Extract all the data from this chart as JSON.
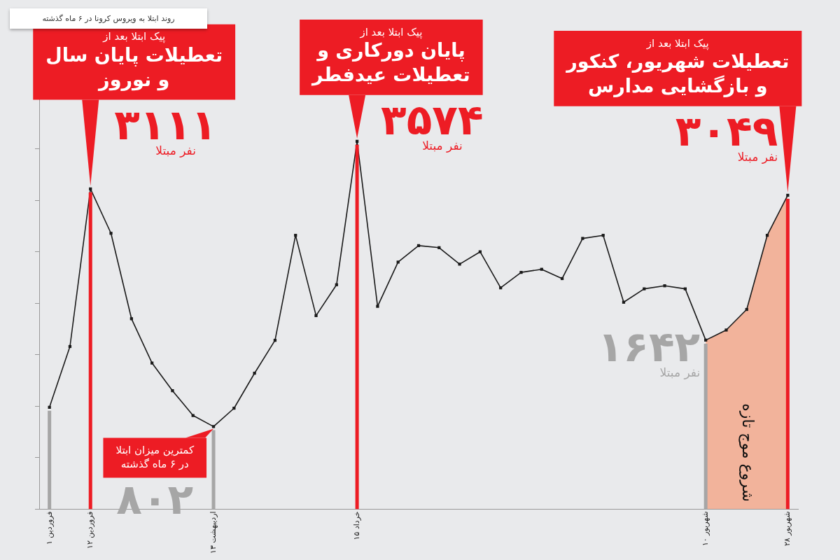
{
  "chart_data": {
    "type": "line",
    "title": "روند ابتلا به ویروس کرونا در ۶ ماه گذشته",
    "categories": [
      "۱ فروردین",
      null,
      "۱۲ فروردین",
      null,
      null,
      null,
      null,
      null,
      "۱۳ اردیبهشت",
      null,
      null,
      null,
      null,
      null,
      null,
      "۱۵ خرداد",
      null,
      null,
      null,
      null,
      null,
      null,
      null,
      null,
      null,
      null,
      null,
      null,
      null,
      null,
      null,
      null,
      "۱۰ شهریور",
      null,
      null,
      null,
      "۲۸ شهریور"
    ],
    "series": [
      {
        "color": "#1a1a1a",
        "values": [
          990,
          1580,
          3111,
          2680,
          1850,
          1420,
          1150,
          910,
          802,
          980,
          1320,
          1640,
          2660,
          1880,
          2180,
          3574,
          1970,
          2400,
          2560,
          2540,
          2380,
          2500,
          2150,
          2300,
          2330,
          2240,
          2630,
          2660,
          2010,
          2140,
          2170,
          2140,
          1642,
          1740,
          1940,
          2660,
          3049
        ],
        "value_labels": [
          null,
          null,
          "۳۱۱۱\nنفر مبتلا",
          null,
          null,
          null,
          null,
          null,
          "۸۰۲",
          null,
          null,
          null,
          null,
          null,
          null,
          "۳۵۷۴\nنفر مبتلا",
          null,
          null,
          null,
          null,
          null,
          null,
          null,
          null,
          null,
          null,
          null,
          null,
          null,
          null,
          null,
          null,
          "۱۶۴۲\nنفر مبتلا",
          null,
          null,
          null,
          "۳۰۴۹\nنفر مبتلا"
        ]
      },
      {
        "type": "area",
        "name": "شروع موج تازه",
        "color": "#f2b39b",
        "marker": "none",
        "values": [
          null,
          null,
          null,
          null,
          null,
          null,
          null,
          null,
          null,
          null,
          null,
          null,
          null,
          null,
          null,
          null,
          null,
          null,
          null,
          null,
          null,
          null,
          null,
          null,
          null,
          null,
          null,
          null,
          null,
          null,
          null,
          null,
          1642,
          1740,
          1940,
          2660,
          3049
        ]
      }
    ],
    "ylim": [
      0,
      4130
    ],
    "yticks": [
      {
        "value": 0,
        "label": null
      },
      {
        "value": 500,
        "label": null
      },
      {
        "value": 1000,
        "label": null
      },
      {
        "value": 1500,
        "label": null
      },
      {
        "value": 2000,
        "label": null
      },
      {
        "value": 2500,
        "label": null
      },
      {
        "value": 3000,
        "label": null
      },
      {
        "value": 3500,
        "label": null
      },
      {
        "value": 4000,
        "label": null
      }
    ],
    "tick_labels": "x",
    "grid": false,
    "legend": false,
    "marker": "square",
    "line_style": "solid",
    "ref_lines": [
      {
        "axis": "x",
        "value": "۱ فروردین",
        "color": "#a6a6a6"
      },
      {
        "axis": "x",
        "value": "۱۲ فروردین",
        "color": "#ed1c24"
      },
      {
        "axis": "x",
        "value": "۱۳ اردیبهشت",
        "color": "#a6a6a6"
      },
      {
        "axis": "x",
        "value": "۱۵ خرداد",
        "color": "#ed1c24"
      },
      {
        "axis": "x",
        "value": "۱۰ شهریور",
        "color": "#a6a6a6"
      },
      {
        "axis": "x",
        "value": "۲۸ شهریور",
        "color": "#ed1c24"
      }
    ],
    "annotations": [
      {
        "text": "پیک ابتلا بعد از\nتعطیلات پایان سال\nو نوروز",
        "x": "۱۲ فروردین",
        "y": 3111
      },
      {
        "text": "کمترین میزان ابتلا\nدر ۶ ماه گذشته",
        "x": "۱۳ اردیبهشت",
        "y": 802
      },
      {
        "text": "پیک ابتلا بعد از\nپایان دورکاری و\nتعطیلات عیدفطر",
        "x": "۱۵ خرداد",
        "y": 3574
      },
      {
        "text": "پیک ابتلا بعد از\nتعطیلات شهریور، کنکور\nو بازگشایی مدارس",
        "x": "۲۸ شهریور",
        "y": 3049
      }
    ]
  }
}
